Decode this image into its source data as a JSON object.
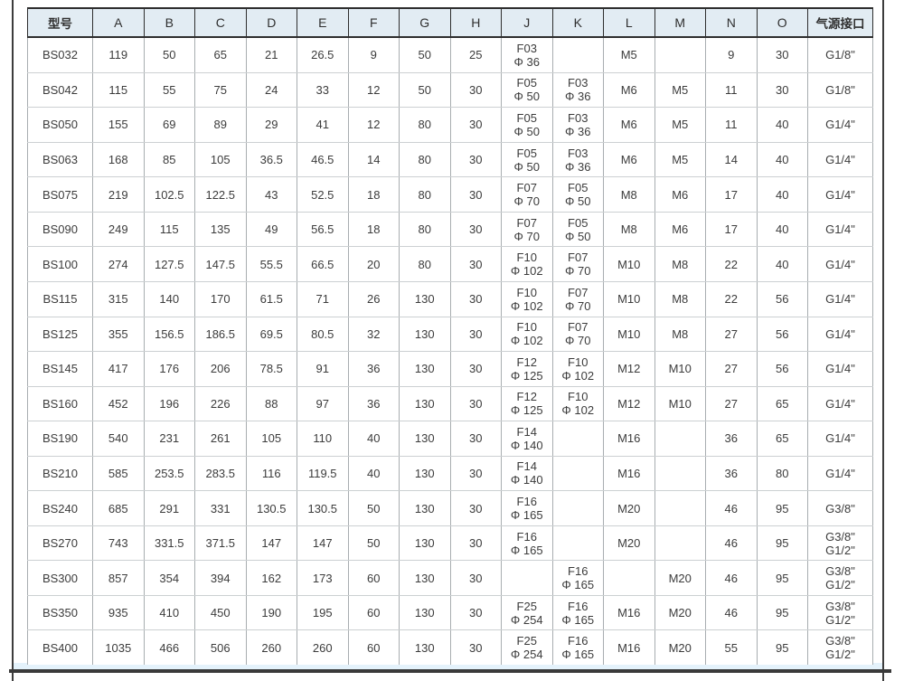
{
  "page": {
    "type": "product-specification-table",
    "frame_color": "#3d3d3d",
    "header_bg": "#e2ecf3",
    "bottom_strip_color": "#e4f2fb",
    "text_color": "#3c3c3c"
  },
  "table": {
    "headers": [
      "型号",
      "A",
      "B",
      "C",
      "D",
      "E",
      "F",
      "G",
      "H",
      "J",
      "K",
      "L",
      "M",
      "N",
      "O",
      "气源接口"
    ],
    "rows": [
      [
        "BS032",
        "119",
        "50",
        "65",
        "21",
        "26.5",
        "9",
        "50",
        "25",
        "F03\nΦ 36",
        "",
        "M5",
        "",
        "9",
        "30",
        "G1/8\""
      ],
      [
        "BS042",
        "115",
        "55",
        "75",
        "24",
        "33",
        "12",
        "50",
        "30",
        "F05\nΦ 50",
        "F03\nΦ 36",
        "M6",
        "M5",
        "11",
        "30",
        "G1/8\""
      ],
      [
        "BS050",
        "155",
        "69",
        "89",
        "29",
        "41",
        "12",
        "80",
        "30",
        "F05\nΦ 50",
        "F03\nΦ 36",
        "M6",
        "M5",
        "11",
        "40",
        "G1/4\""
      ],
      [
        "BS063",
        "168",
        "85",
        "105",
        "36.5",
        "46.5",
        "14",
        "80",
        "30",
        "F05\nΦ 50",
        "F03\nΦ 36",
        "M6",
        "M5",
        "14",
        "40",
        "G1/4\""
      ],
      [
        "BS075",
        "219",
        "102.5",
        "122.5",
        "43",
        "52.5",
        "18",
        "80",
        "30",
        "F07\nΦ 70",
        "F05\nΦ 50",
        "M8",
        "M6",
        "17",
        "40",
        "G1/4\""
      ],
      [
        "BS090",
        "249",
        "115",
        "135",
        "49",
        "56.5",
        "18",
        "80",
        "30",
        "F07\nΦ 70",
        "F05\nΦ 50",
        "M8",
        "M6",
        "17",
        "40",
        "G1/4\""
      ],
      [
        "BS100",
        "274",
        "127.5",
        "147.5",
        "55.5",
        "66.5",
        "20",
        "80",
        "30",
        "F10\nΦ 102",
        "F07\nΦ 70",
        "M10",
        "M8",
        "22",
        "40",
        "G1/4\""
      ],
      [
        "BS115",
        "315",
        "140",
        "170",
        "61.5",
        "71",
        "26",
        "130",
        "30",
        "F10\nΦ 102",
        "F07\nΦ 70",
        "M10",
        "M8",
        "22",
        "56",
        "G1/4\""
      ],
      [
        "BS125",
        "355",
        "156.5",
        "186.5",
        "69.5",
        "80.5",
        "32",
        "130",
        "30",
        "F10\nΦ 102",
        "F07\nΦ 70",
        "M10",
        "M8",
        "27",
        "56",
        "G1/4\""
      ],
      [
        "BS145",
        "417",
        "176",
        "206",
        "78.5",
        "91",
        "36",
        "130",
        "30",
        "F12\nΦ 125",
        "F10\nΦ 102",
        "M12",
        "M10",
        "27",
        "56",
        "G1/4\""
      ],
      [
        "BS160",
        "452",
        "196",
        "226",
        "88",
        "97",
        "36",
        "130",
        "30",
        "F12\nΦ 125",
        "F10\nΦ 102",
        "M12",
        "M10",
        "27",
        "65",
        "G1/4\""
      ],
      [
        "BS190",
        "540",
        "231",
        "261",
        "105",
        "110",
        "40",
        "130",
        "30",
        "F14\nΦ 140",
        "",
        "M16",
        "",
        "36",
        "65",
        "G1/4\""
      ],
      [
        "BS210",
        "585",
        "253.5",
        "283.5",
        "116",
        "119.5",
        "40",
        "130",
        "30",
        "F14\nΦ 140",
        "",
        "M16",
        "",
        "36",
        "80",
        "G1/4\""
      ],
      [
        "BS240",
        "685",
        "291",
        "331",
        "130.5",
        "130.5",
        "50",
        "130",
        "30",
        "F16\nΦ 165",
        "",
        "M20",
        "",
        "46",
        "95",
        "G3/8\""
      ],
      [
        "BS270",
        "743",
        "331.5",
        "371.5",
        "147",
        "147",
        "50",
        "130",
        "30",
        "F16\nΦ 165",
        "",
        "M20",
        "",
        "46",
        "95",
        "G3/8\"\nG1/2\""
      ],
      [
        "BS300",
        "857",
        "354",
        "394",
        "162",
        "173",
        "60",
        "130",
        "30",
        "",
        "F16\nΦ 165",
        "",
        "M20",
        "46",
        "95",
        "G3/8\"\nG1/2\""
      ],
      [
        "BS350",
        "935",
        "410",
        "450",
        "190",
        "195",
        "60",
        "130",
        "30",
        "F25\nΦ 254",
        "F16\nΦ 165",
        "M16",
        "M20",
        "46",
        "95",
        "G3/8\"\nG1/2\""
      ],
      [
        "BS400",
        "1035",
        "466",
        "506",
        "260",
        "260",
        "60",
        "130",
        "30",
        "F25\nΦ 254",
        "F16\nΦ 165",
        "M16",
        "M20",
        "55",
        "95",
        "G3/8\"\nG1/2\""
      ]
    ]
  }
}
